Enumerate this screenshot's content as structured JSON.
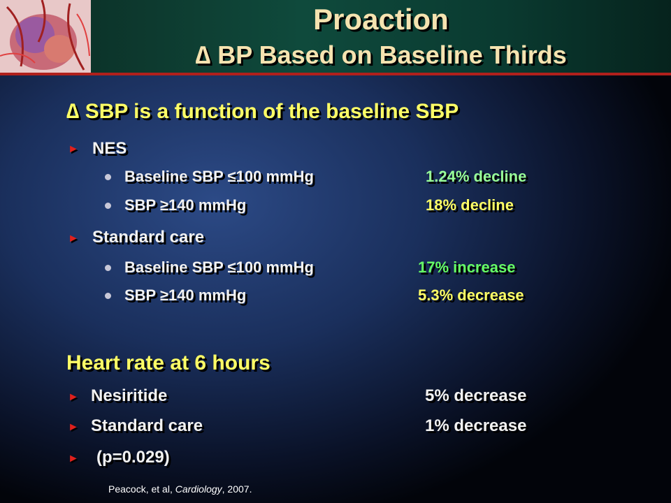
{
  "header": {
    "title": "Proaction",
    "subtitle": "∆ BP Based on Baseline Thirds"
  },
  "sections": [
    {
      "heading": "∆ SBP is a function of the baseline SBP",
      "groups": [
        {
          "label": "NES",
          "items": [
            {
              "label": "Baseline SBP ≤100 mmHg",
              "result": "1.24% decline"
            },
            {
              "label": "SBP ≥140 mmHg",
              "result": "18% decline"
            }
          ]
        },
        {
          "label": "Standard care",
          "items": [
            {
              "label": "Baseline SBP ≤100 mmHg",
              "result": "17% increase"
            },
            {
              "label": "SBP ≥140 mmHg",
              "result": "5.3% decrease"
            }
          ]
        }
      ]
    },
    {
      "heading": "Heart rate at 6 hours",
      "items": [
        {
          "label": "Nesiritide",
          "result": "5% decrease"
        },
        {
          "label": "Standard care",
          "result": "1% decrease"
        },
        {
          "label": "(p=0.029)"
        }
      ]
    }
  ],
  "footnote": {
    "authors": "Peacock, et al, ",
    "journal": "Cardiology",
    "year": ", 2007."
  }
}
